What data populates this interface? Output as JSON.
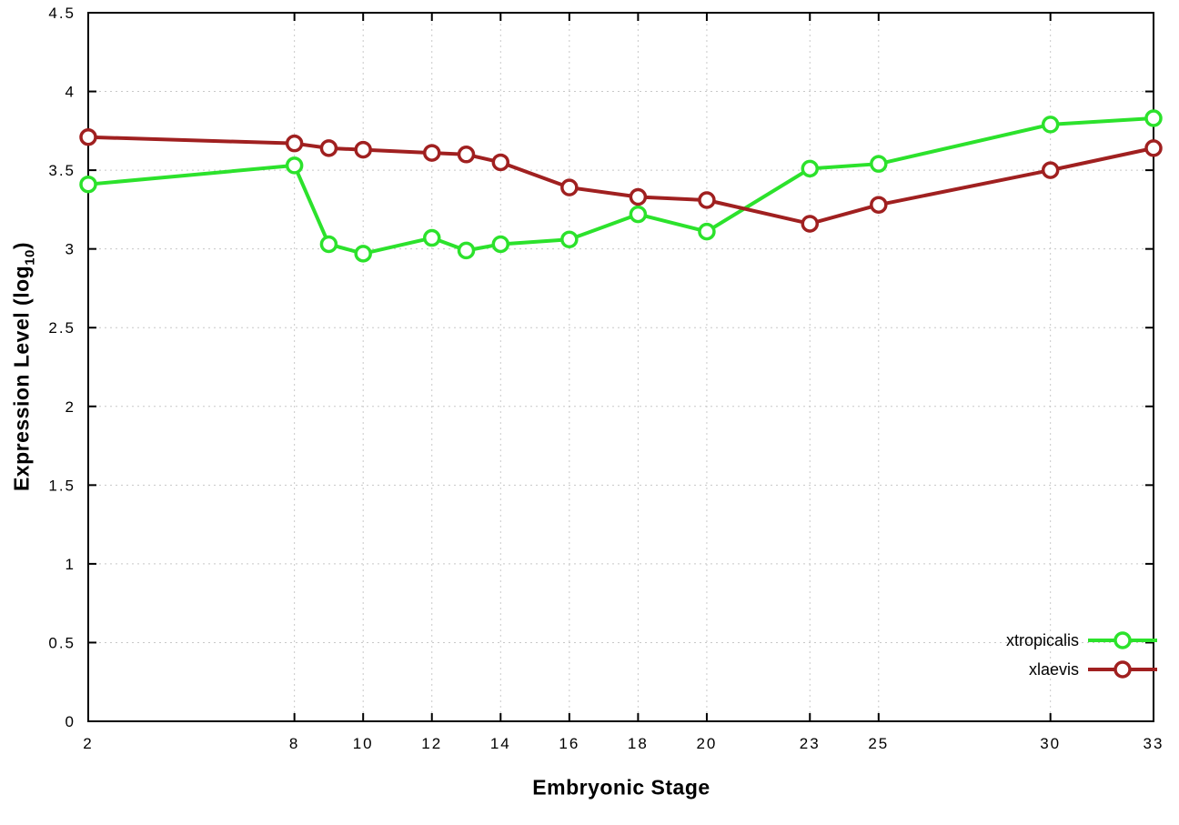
{
  "chart_data": {
    "type": "line",
    "title": "",
    "xlabel": "Embryonic Stage",
    "ylabel": "Expression Level (log10)",
    "ylabel_parts": {
      "main": "Expression Level (log",
      "sub": "10",
      "close": ")"
    },
    "xlim": [
      2,
      33
    ],
    "ylim": [
      0,
      4.5
    ],
    "grid": true,
    "legend_position": "bottom-right",
    "xticks": [
      2,
      8,
      10,
      12,
      14,
      16,
      18,
      20,
      23,
      25,
      30,
      33
    ],
    "xtick_labels": [
      "2",
      "8",
      "10",
      "12",
      "14",
      "16",
      "18",
      "20",
      "23",
      "25",
      "30",
      "33"
    ],
    "yticks": [
      0,
      0.5,
      1,
      1.5,
      2,
      2.5,
      3,
      3.5,
      4,
      4.5
    ],
    "ytick_labels": [
      "0",
      "0.5",
      "1",
      "1.5",
      "2",
      "2.5",
      "3",
      "3.5",
      "4",
      "4.5"
    ],
    "x": [
      2,
      8,
      9,
      10,
      12,
      13,
      14,
      16,
      18,
      20,
      23,
      25,
      30,
      33
    ],
    "series": [
      {
        "name": "xtropicalis",
        "color": "#2ce22c",
        "marker": "open-circle",
        "values": [
          3.41,
          3.53,
          3.03,
          2.97,
          3.07,
          2.99,
          3.03,
          3.06,
          3.22,
          3.11,
          3.51,
          3.54,
          3.79,
          3.83
        ]
      },
      {
        "name": "xlaevis",
        "color": "#a02020",
        "marker": "open-circle",
        "values": [
          3.71,
          3.67,
          3.64,
          3.63,
          3.61,
          3.6,
          3.55,
          3.39,
          3.33,
          3.31,
          3.16,
          3.28,
          3.5,
          3.64
        ]
      }
    ],
    "style": {
      "grid_color": "#c8c8c8",
      "axis_color": "#000000",
      "background": "#ffffff"
    }
  }
}
